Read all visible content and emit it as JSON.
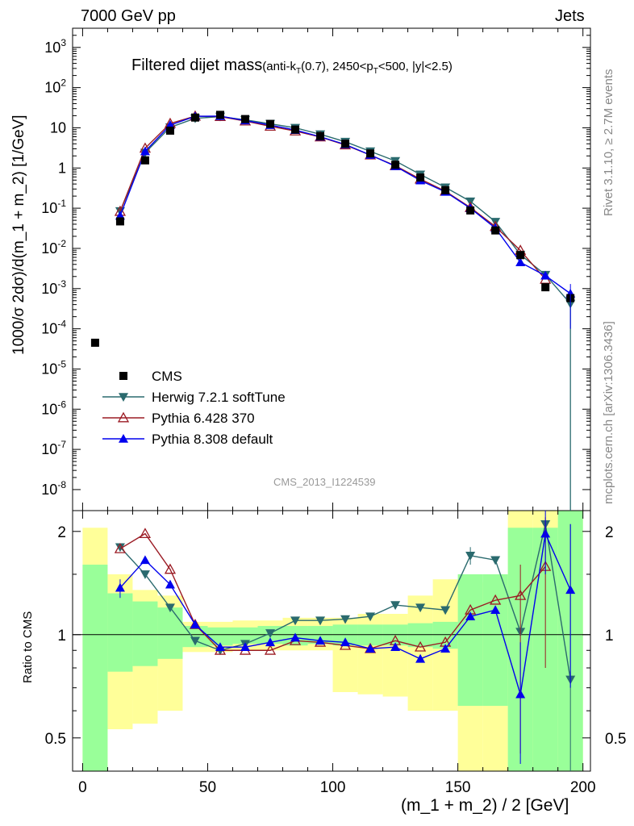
{
  "header": {
    "left": "7000 GeV pp",
    "right": "Jets",
    "title_main": "Filtered dijet mass",
    "title_cuts_a": "(anti-k",
    "title_cuts_sub_t": "T",
    "title_cuts_b": "(0.7), 2450<p",
    "title_cuts_sub_t2": "T",
    "title_cuts_c": "<500, |y|<2.5)",
    "analysis_id": "CMS_2013_I1224539"
  },
  "side_labels": {
    "rivet": "Rivet 3.1.10, ≥ 2.7M events",
    "mcplots": "mcplots.cern.ch [arXiv:1306.3436]"
  },
  "colors": {
    "data": "#000000",
    "herwig": "#2a6a6e",
    "pythia6": "#9b1b24",
    "pythia8": "#0000ee",
    "band_green": "#99ff99",
    "band_yellow": "#ffff99"
  },
  "chart_data": [
    {
      "type": "line",
      "ylabel": "1000/σ 2dσ)/d(m_1 + m_2) [1/GeV]",
      "yscale": "log",
      "ylim": [
        3e-09,
        3000
      ],
      "xlim": [
        -4,
        203
      ],
      "y_ticks": [
        "10^{-8}",
        "10^{-7}",
        "10^{-6}",
        "10^{-5}",
        "10^{-4}",
        "10^{-3}",
        "10^{-2}",
        "10^{-1}",
        "1",
        "10",
        "10^{2}",
        "10^{3}"
      ],
      "x": [
        5,
        15,
        25,
        35,
        45,
        55,
        65,
        75,
        85,
        95,
        105,
        115,
        125,
        135,
        145,
        155,
        165,
        175,
        185,
        195
      ],
      "series": [
        {
          "name": "CMS",
          "marker": "square",
          "values": [
            4.5e-05,
            0.047,
            1.55,
            8.5,
            18,
            21,
            16.5,
            12.5,
            9,
            6.2,
            4,
            2.3,
            1.2,
            0.58,
            0.28,
            0.088,
            0.028,
            0.0068,
            0.00108,
            0.00058
          ]
        },
        {
          "name": "Herwig 7.2.1 softTune",
          "marker": "triangle-down",
          "values": [
            null,
            0.085,
            2.4,
            10.3,
            17.2,
            19,
            15.8,
            12.6,
            10,
            6.9,
            4.5,
            2.6,
            1.5,
            0.69,
            0.33,
            0.148,
            0.046,
            0.007,
            0.0022,
            0.00042
          ]
        },
        {
          "name": "Pythia 6.428 370",
          "marker": "triangle-open",
          "values": [
            null,
            0.083,
            3.1,
            12.8,
            19.5,
            19,
            14.7,
            10.9,
            8.3,
            5.9,
            3.75,
            2.1,
            1.14,
            0.53,
            0.265,
            0.104,
            0.035,
            0.0089,
            0.0017,
            null
          ]
        },
        {
          "name": "Pythia 8.308 default",
          "marker": "triangle-up",
          "values": [
            null,
            0.065,
            2.6,
            11.7,
            19.3,
            19.5,
            15.2,
            11.7,
            8.8,
            6,
            3.85,
            2.11,
            1.11,
            0.49,
            0.255,
            0.1,
            0.032,
            0.0045,
            0.0021,
            0.00075
          ]
        }
      ],
      "legend": "middle-left"
    },
    {
      "type": "line",
      "ylabel": "Ratio to CMS",
      "xlabel": "(m_1 + m_2) / 2 [GeV]",
      "yscale": "log",
      "ylim": [
        0.4,
        2.3
      ],
      "y_ticks": [
        "0.5",
        "1",
        "2"
      ],
      "x_ticks": [
        "0",
        "50",
        "100",
        "150",
        "200"
      ],
      "x": [
        15,
        25,
        35,
        45,
        55,
        65,
        75,
        85,
        95,
        105,
        115,
        125,
        135,
        145,
        155,
        165,
        175,
        185,
        195
      ],
      "series": [
        {
          "name": "Herwig 7.2.1 softTune",
          "values": [
            1.8,
            1.5,
            1.2,
            0.96,
            0.9,
            0.94,
            1.01,
            1.1,
            1.1,
            1.11,
            1.13,
            1.22,
            1.2,
            1.18,
            1.7,
            1.65,
            1.02,
            2.1,
            0.74
          ]
        },
        {
          "name": "Pythia 6.428 370",
          "values": [
            1.78,
            1.97,
            1.55,
            1.07,
            0.9,
            0.9,
            0.9,
            0.96,
            0.95,
            0.93,
            0.91,
            0.96,
            0.92,
            0.95,
            1.18,
            1.26,
            1.3,
            1.58,
            null
          ]
        },
        {
          "name": "Pythia 8.308 default",
          "values": [
            1.37,
            1.65,
            1.4,
            1.07,
            0.92,
            0.92,
            0.95,
            0.98,
            0.96,
            0.95,
            0.91,
            0.92,
            0.85,
            0.91,
            1.13,
            1.18,
            0.67,
            1.97,
            1.35
          ]
        }
      ],
      "bands": {
        "x_edges": [
          0,
          10,
          20,
          30,
          40,
          50,
          60,
          70,
          80,
          90,
          100,
          110,
          120,
          130,
          140,
          150,
          160,
          170,
          180,
          190,
          200
        ],
        "green": [
          [
            0.35,
            1.6
          ],
          [
            0.78,
            1.32
          ],
          [
            0.81,
            1.25
          ],
          [
            0.85,
            1.2
          ],
          [
            0.92,
            1.06
          ],
          [
            0.93,
            1.05
          ],
          [
            0.94,
            1.05
          ],
          [
            0.94,
            1.06
          ],
          [
            0.93,
            1.06
          ],
          [
            0.94,
            1.06
          ],
          [
            0.93,
            1.07
          ],
          [
            0.93,
            1.07
          ],
          [
            0.93,
            1.07
          ],
          [
            0.92,
            1.08
          ],
          [
            0.91,
            1.09
          ],
          [
            0.62,
            1.5
          ],
          [
            0.62,
            1.5
          ],
          [
            0.35,
            2.05
          ],
          [
            0.35,
            2.05
          ],
          [
            0.35,
            2.3
          ]
        ],
        "yellow": [
          [
            0.35,
            2.05
          ],
          [
            0.53,
            1.5
          ],
          [
            0.55,
            1.35
          ],
          [
            0.6,
            1.3
          ],
          [
            0.89,
            1.09
          ],
          [
            0.89,
            1.09
          ],
          [
            0.9,
            1.1
          ],
          [
            0.9,
            1.1
          ],
          [
            0.9,
            1.12
          ],
          [
            0.9,
            1.12
          ],
          [
            0.68,
            1.12
          ],
          [
            0.67,
            1.15
          ],
          [
            0.66,
            1.15
          ],
          [
            0.6,
            1.3
          ],
          [
            0.6,
            1.45
          ],
          [
            0.35,
            1.42
          ],
          [
            0.35,
            1.42
          ],
          [
            0.35,
            2.3
          ],
          [
            0.35,
            2.3
          ],
          [
            0.35,
            2.3
          ]
        ]
      }
    }
  ]
}
